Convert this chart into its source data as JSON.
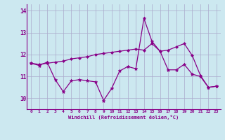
{
  "xlabel": "Windchill (Refroidissement éolien,°C)",
  "x": [
    0,
    1,
    2,
    3,
    4,
    5,
    6,
    7,
    8,
    9,
    10,
    11,
    12,
    13,
    14,
    15,
    16,
    17,
    18,
    19,
    20,
    21,
    22,
    23
  ],
  "line1": [
    11.6,
    11.5,
    11.65,
    10.85,
    10.3,
    10.8,
    10.85,
    10.8,
    10.75,
    9.9,
    10.45,
    11.25,
    11.45,
    11.35,
    13.65,
    12.6,
    12.15,
    11.3,
    11.3,
    11.55,
    11.1,
    11.0,
    10.5,
    10.55
  ],
  "line2": [
    11.6,
    11.55,
    11.6,
    11.65,
    11.7,
    11.8,
    11.85,
    11.9,
    12.0,
    12.05,
    12.1,
    12.15,
    12.2,
    12.25,
    12.2,
    12.5,
    12.15,
    12.2,
    12.35,
    12.5,
    11.95,
    11.05,
    10.5,
    10.55
  ],
  "line_color": "#880088",
  "bg_color": "#cce8f0",
  "grid_color": "#aaaacc",
  "ylim": [
    9.5,
    14.3
  ],
  "xlim": [
    -0.5,
    23.5
  ],
  "yticks": [
    10,
    11,
    12,
    13,
    14
  ],
  "xticks": [
    0,
    1,
    2,
    3,
    4,
    5,
    6,
    7,
    8,
    9,
    10,
    11,
    12,
    13,
    14,
    15,
    16,
    17,
    18,
    19,
    20,
    21,
    22,
    23
  ]
}
